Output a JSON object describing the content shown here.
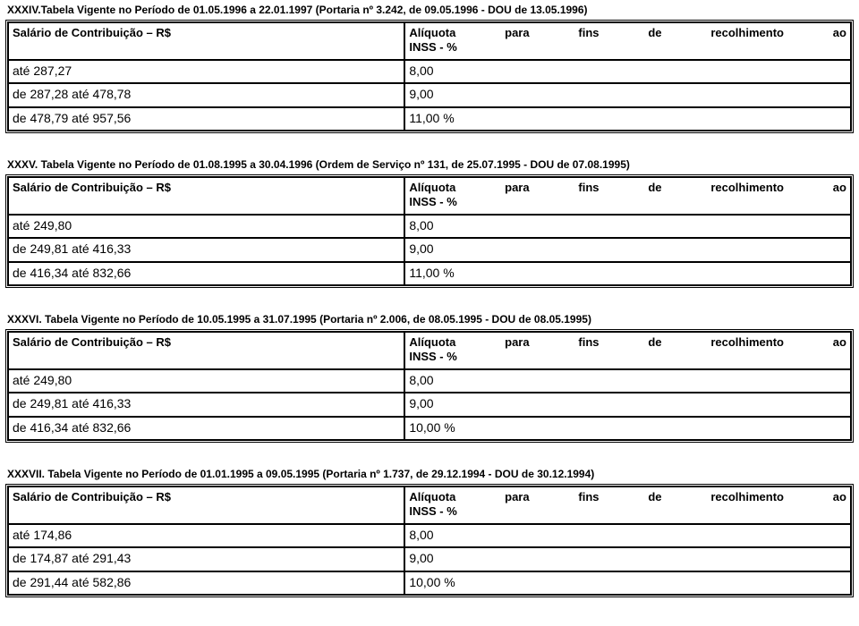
{
  "header_col1": "Salário de Contribuição – R$",
  "header_col2_words": [
    "Alíquota",
    "para",
    "fins",
    "de",
    "recolhimento",
    "ao"
  ],
  "header_col2_line2": "INSS - %",
  "sections": [
    {
      "title": "XXXIV.Tabela Vigente no Período de 01.05.1996 a 22.01.1997 (Portaria nº 3.242, de 09.05.1996 - DOU de 13.05.1996)",
      "rows": [
        {
          "salary": "até 287,27",
          "rate": "8,00"
        },
        {
          "salary": "de 287,28 até 478,78",
          "rate": "9,00"
        },
        {
          "salary": "de 478,79 até 957,56",
          "rate": "11,00 %"
        }
      ]
    },
    {
      "title": "XXXV. Tabela Vigente no Período de 01.08.1995 a 30.04.1996 (Ordem de Serviço nº 131, de 25.07.1995 - DOU de 07.08.1995)",
      "rows": [
        {
          "salary": "até 249,80",
          "rate": "8,00"
        },
        {
          "salary": "de 249,81 até 416,33",
          "rate": "9,00"
        },
        {
          "salary": "de 416,34 até 832,66",
          "rate": "11,00 %"
        }
      ]
    },
    {
      "title": "XXXVI. Tabela Vigente no Período de 10.05.1995 a 31.07.1995 (Portaria nº 2.006, de 08.05.1995 - DOU de 08.05.1995)",
      "rows": [
        {
          "salary": "até 249,80",
          "rate": "8,00"
        },
        {
          "salary": "de 249,81 até 416,33",
          "rate": "9,00"
        },
        {
          "salary": "de 416,34 até 832,66",
          "rate": "10,00 %"
        }
      ]
    },
    {
      "title": "XXXVII. Tabela Vigente no Período de 01.01.1995 a 09.05.1995 (Portaria nº 1.737, de 29.12.1994 - DOU de 30.12.1994)",
      "rows": [
        {
          "salary": "até 174,86",
          "rate": "8,00"
        },
        {
          "salary": "de 174,87 até 291,43",
          "rate": "9,00"
        },
        {
          "salary": "de 291,44 até 582,86",
          "rate": "10,00 %"
        }
      ]
    }
  ]
}
